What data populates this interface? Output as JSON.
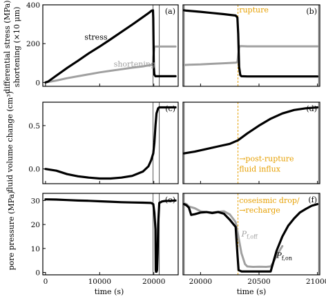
{
  "chart_data": [
    {
      "id": "a",
      "type": "line",
      "panel_label": "(a)",
      "ylabel": "differential stress (MPa)",
      "ylabel2": "shortening (×10 μm)",
      "xlim": [
        -500,
        24500
      ],
      "ylim": [
        -20,
        400
      ],
      "yticks": [
        0,
        200,
        400
      ],
      "xticks": [
        0,
        10000,
        20000
      ],
      "vlines": [
        19850,
        21000
      ],
      "series": [
        {
          "name": "stress",
          "color": "#000000",
          "x": [
            0,
            500,
            2000,
            4000,
            6000,
            8000,
            10000,
            12000,
            14000,
            16000,
            18000,
            19000,
            19600,
            19850,
            19900,
            20000,
            20100,
            20300,
            21000,
            22000,
            23000,
            24000
          ],
          "y": [
            0,
            5,
            35,
            75,
            112,
            150,
            185,
            222,
            260,
            298,
            337,
            357,
            370,
            372,
            330,
            80,
            40,
            32,
            32,
            32,
            32,
            32
          ]
        },
        {
          "name": "shortening",
          "color": "#a0a0a0",
          "x": [
            0,
            2000,
            4000,
            6000,
            8000,
            10000,
            12000,
            14000,
            16000,
            18000,
            19000,
            19850,
            19900,
            20100,
            20300,
            21000,
            22000,
            23000,
            24000
          ],
          "y": [
            0,
            10,
            22,
            32,
            42,
            52,
            60,
            68,
            76,
            83,
            88,
            92,
            130,
            182,
            185,
            185,
            185,
            185,
            185
          ]
        }
      ],
      "annotations": [
        {
          "text": "stress",
          "x": 7200,
          "y": 220,
          "color": "#000000"
        },
        {
          "text": "shortening",
          "x": 12600,
          "y": 82,
          "color": "#a0a0a0"
        }
      ]
    },
    {
      "id": "b",
      "type": "line",
      "panel_label": "(b)",
      "xlim": [
        19850,
        21020
      ],
      "ylim": [
        -20,
        400
      ],
      "xticks": [
        20000,
        20500,
        21000
      ],
      "vlines": [
        19860,
        21010
      ],
      "rupture_x": 20320,
      "series": [
        {
          "name": "stress",
          "color": "#000000",
          "x": [
            19860,
            19880,
            20000,
            20100,
            20200,
            20300,
            20315,
            20322,
            20330,
            20340,
            20350,
            20400,
            20500,
            20600,
            20700,
            20800,
            20900,
            21000
          ],
          "y": [
            372,
            370,
            364,
            358,
            352,
            345,
            335,
            250,
            80,
            38,
            32,
            31,
            31,
            31,
            31,
            31,
            31,
            31
          ]
        },
        {
          "name": "shortening",
          "color": "#a0a0a0",
          "x": [
            19860,
            19900,
            20000,
            20100,
            20200,
            20300,
            20315,
            20322,
            20330,
            20340,
            20400,
            20500,
            20600,
            20700,
            20800,
            20900,
            21000
          ],
          "y": [
            90,
            91,
            93,
            96,
            99,
            102,
            104,
            140,
            180,
            187,
            186,
            186,
            186,
            186,
            186,
            186,
            186
          ]
        }
      ],
      "annotations": [
        {
          "text": "rupture",
          "x": 20330,
          "y": 360,
          "color": "#e69f00"
        }
      ]
    },
    {
      "id": "c",
      "type": "line",
      "panel_label": "(c)",
      "ylabel": "fluid volume change (cm³)",
      "xlim": [
        -500,
        24500
      ],
      "ylim": [
        -0.17,
        0.77
      ],
      "yticks": [
        0.0,
        0.5
      ],
      "xticks": [
        0,
        10000,
        20000
      ],
      "vlines": [
        19850,
        21000
      ],
      "series": [
        {
          "name": "fluid volume",
          "color": "#000000",
          "x": [
            0,
            2000,
            4000,
            6000,
            8000,
            10000,
            12000,
            14000,
            16000,
            18000,
            19000,
            19500,
            19900,
            20100,
            20300,
            20500,
            20800,
            21000,
            22000,
            23000,
            24000
          ],
          "y": [
            0.0,
            -0.02,
            -0.06,
            -0.085,
            -0.1,
            -0.11,
            -0.11,
            -0.1,
            -0.08,
            -0.03,
            0.03,
            0.1,
            0.18,
            0.3,
            0.5,
            0.64,
            0.7,
            0.71,
            0.71,
            0.71,
            0.71
          ]
        }
      ]
    },
    {
      "id": "d",
      "type": "line",
      "panel_label": "(d)",
      "xlim": [
        19850,
        21020
      ],
      "ylim": [
        -0.17,
        0.77
      ],
      "xticks": [
        20000,
        20500,
        21000
      ],
      "vlines": [
        19860,
        21010
      ],
      "rupture_x": 20320,
      "series": [
        {
          "name": "fluid volume",
          "color": "#000000",
          "x": [
            19860,
            19950,
            20050,
            20150,
            20250,
            20320,
            20400,
            20500,
            20600,
            20700,
            20800,
            20900,
            21000
          ],
          "y": [
            0.18,
            0.2,
            0.23,
            0.26,
            0.29,
            0.33,
            0.41,
            0.5,
            0.58,
            0.64,
            0.68,
            0.7,
            0.71
          ]
        }
      ],
      "annotations": [
        {
          "text": "→post-rupture",
          "x": 20330,
          "y": 0.09,
          "color": "#e69f00"
        },
        {
          "text": "fluid influx",
          "x": 20330,
          "y": -0.03,
          "color": "#e69f00"
        }
      ]
    },
    {
      "id": "e",
      "type": "line",
      "panel_label": "(e)",
      "ylabel": "pore pressure (MPa)",
      "xlabel": "time (s)",
      "xlim": [
        -500,
        24500
      ],
      "ylim": [
        -1,
        33
      ],
      "yticks": [
        0,
        10,
        20,
        30
      ],
      "xticks": [
        0,
        10000,
        20000
      ],
      "xticklabels": [
        "0",
        "10000",
        "20000"
      ],
      "vlines": [
        19850,
        21000
      ],
      "series": [
        {
          "name": "pore pressure",
          "color": "#000000",
          "x": [
            0,
            2000,
            4000,
            6000,
            8000,
            10000,
            12000,
            14000,
            16000,
            18000,
            19500,
            19900,
            20100,
            20300,
            20350,
            20400,
            20500,
            20600,
            20700,
            20800,
            21000,
            21500,
            22000,
            23000,
            24000
          ],
          "y": [
            30.5,
            30.4,
            30.2,
            30.0,
            29.9,
            29.7,
            29.5,
            29.3,
            29.2,
            29.1,
            29.0,
            28.5,
            25.0,
            18.0,
            1.0,
            0.3,
            0.3,
            1.0,
            8.0,
            20.0,
            29.0,
            29.6,
            29.8,
            29.9,
            30.0
          ]
        }
      ]
    },
    {
      "id": "f",
      "type": "line",
      "panel_label": "(f)",
      "xlabel": "time (s)",
      "xlim": [
        19850,
        21020
      ],
      "ylim": [
        -1,
        33
      ],
      "xticks": [
        20000,
        20500,
        21000
      ],
      "xticklabels": [
        "20000",
        "20500",
        "21000"
      ],
      "vlines": [
        19860,
        21010
      ],
      "rupture_x": 20320,
      "series": [
        {
          "name": "P_f,off",
          "color": "#a0a0a0",
          "x": [
            19860,
            19880,
            19900,
            19950,
            20000,
            20050,
            20100,
            20150,
            20200,
            20250,
            20300,
            20320,
            20350,
            20380,
            20400,
            20450,
            20500,
            20560,
            20600,
            20620,
            20650,
            20700
          ],
          "y": [
            28.8,
            28.5,
            27.5,
            26.8,
            25.5,
            25.2,
            25.0,
            25.3,
            25.5,
            24.2,
            21.0,
            16.0,
            8.0,
            3.5,
            2.5,
            2.3,
            2.4,
            2.3,
            2.5,
            4.0,
            7.0,
            11.0
          ]
        },
        {
          "name": "P_f,on",
          "color": "#000000",
          "x": [
            19860,
            19880,
            19900,
            19920,
            19950,
            20000,
            20050,
            20100,
            20150,
            20200,
            20250,
            20300,
            20315,
            20325,
            20350,
            20400,
            20500,
            20600,
            20650,
            20700,
            20750,
            20800,
            20850,
            20900,
            20950,
            21000
          ],
          "y": [
            28.5,
            28.0,
            27.0,
            24.0,
            24.3,
            25.0,
            25.2,
            24.8,
            25.2,
            24.5,
            22.0,
            19.0,
            8.0,
            1.0,
            0.4,
            0.4,
            0.4,
            0.4,
            9.0,
            15.0,
            19.5,
            22.5,
            25.0,
            26.5,
            27.8,
            28.5
          ]
        }
      ],
      "annotations": [
        {
          "text": "coseismic drop/",
          "x": 20330,
          "y": 29,
          "color": "#e69f00"
        },
        {
          "text": "→recharge",
          "x": 20330,
          "y": 25,
          "color": "#e69f00"
        },
        {
          "text": "P_f,off",
          "x": 20350,
          "y": 15,
          "color": "#a0a0a0"
        },
        {
          "text": "P_f,on",
          "x": 20650,
          "y": 6,
          "color": "#000000"
        }
      ]
    }
  ]
}
